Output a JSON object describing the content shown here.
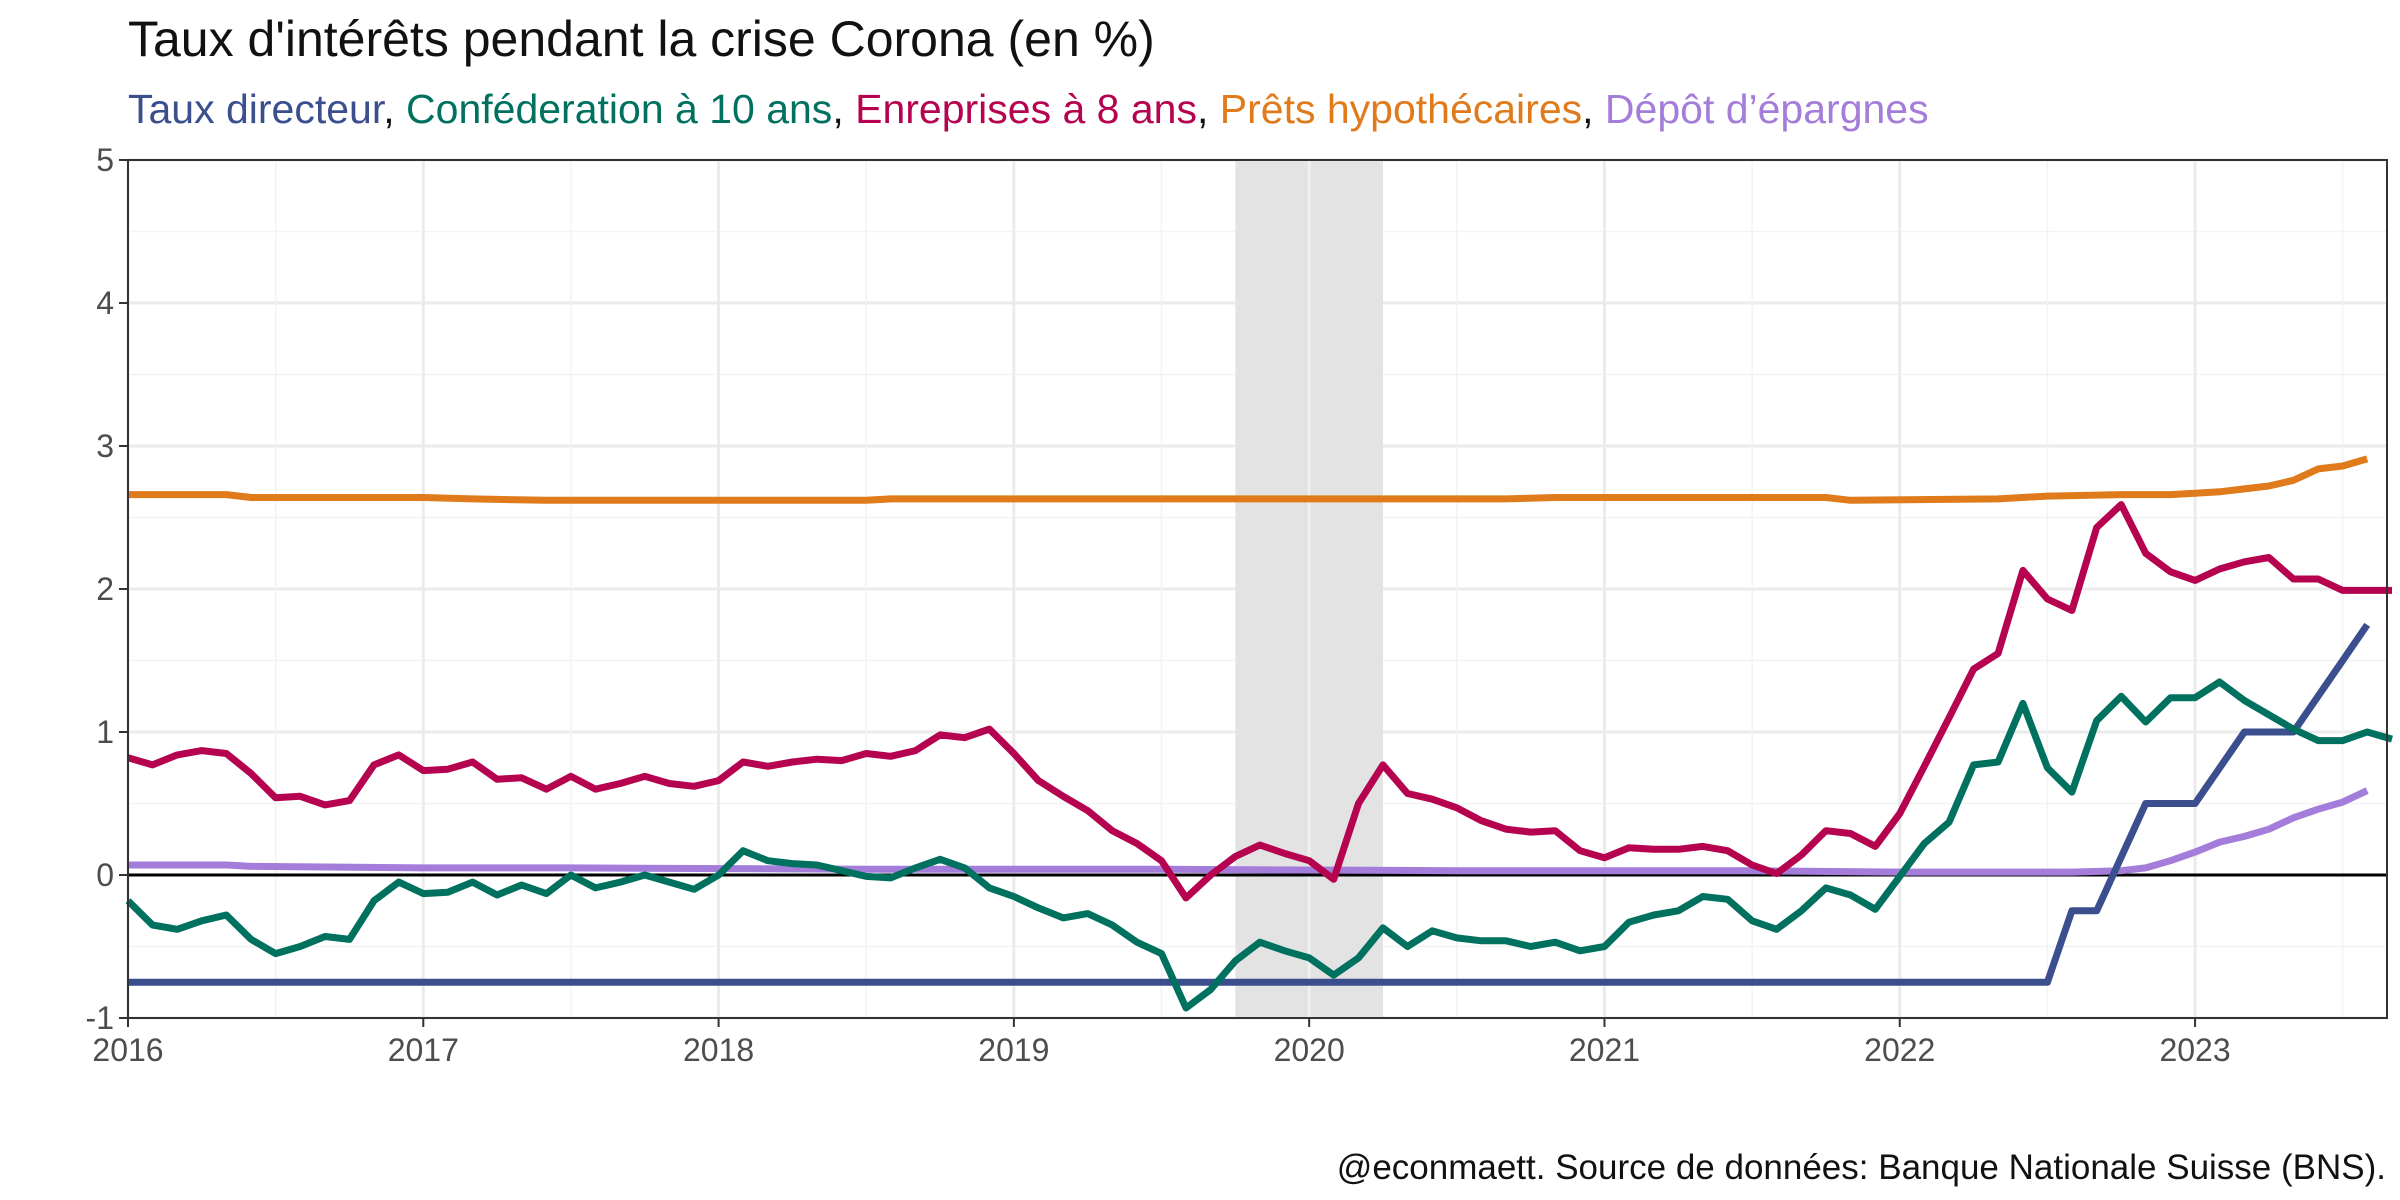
{
  "chart_data": {
    "type": "line",
    "title": "Taux d'intérêts pendant la crise Corona (en %)",
    "caption": "@econmaett. Source de données: Banque Nationale Suisse (BNS).",
    "subtitle_separator": ", ",
    "xlabel": "",
    "ylabel": "",
    "x_ticks": [
      "2016",
      "2017",
      "2018",
      "2019",
      "2020",
      "2021",
      "2022",
      "2023"
    ],
    "y_ticks": [
      "-1",
      "0",
      "1",
      "2",
      "3",
      "4",
      "5"
    ],
    "xlim": [
      2016.0,
      2023.65
    ],
    "ylim": [
      -1,
      5
    ],
    "grid": true,
    "legend_placement": "subtitle",
    "shaded_region": {
      "x": [
        2019.75,
        2020.25
      ],
      "color": "#e3e3e3"
    },
    "zero_line": true,
    "series": [
      {
        "name": "Taux directeur",
        "color": "#3b4f8f",
        "x": [
          2016.0,
          2022.5,
          2022.5,
          2022.583,
          2022.583,
          2022.667,
          2022.667,
          2022.833,
          2022.833,
          2023.0,
          2023.0,
          2023.167,
          2023.167,
          2023.333,
          2023.333,
          2023.5,
          2023.5,
          2023.583
        ],
        "values": [
          -0.75,
          -0.75,
          -0.75,
          -0.25,
          -0.25,
          -0.25,
          -0.25,
          0.5,
          0.5,
          0.5,
          0.5,
          1.0,
          1.0,
          1.0,
          1.0,
          1.5,
          1.5,
          1.75
        ]
      },
      {
        "name": "Conféderation à 10 ans",
        "color": "#00705f",
        "x": [
          2016.0,
          2016.083,
          2016.167,
          2016.25,
          2016.333,
          2016.417,
          2016.5,
          2016.583,
          2016.667,
          2016.75,
          2016.833,
          2016.917,
          2017.0,
          2017.083,
          2017.167,
          2017.25,
          2017.333,
          2017.417,
          2017.5,
          2017.583,
          2017.667,
          2017.75,
          2017.833,
          2017.917,
          2018.0,
          2018.083,
          2018.167,
          2018.25,
          2018.333,
          2018.417,
          2018.5,
          2018.583,
          2018.667,
          2018.75,
          2018.833,
          2018.917,
          2019.0,
          2019.083,
          2019.167,
          2019.25,
          2019.333,
          2019.417,
          2019.5,
          2019.583,
          2019.667,
          2019.75,
          2019.833,
          2019.917,
          2020.0,
          2020.083,
          2020.167,
          2020.25,
          2020.333,
          2020.417,
          2020.5,
          2020.583,
          2020.667,
          2020.75,
          2020.833,
          2020.917,
          2021.0,
          2021.083,
          2021.167,
          2021.25,
          2021.333,
          2021.417,
          2021.5,
          2021.583,
          2021.667,
          2021.75,
          2021.833,
          2021.917,
          2022.0,
          2022.083,
          2022.167,
          2022.25,
          2022.333,
          2022.417,
          2022.5,
          2022.583,
          2022.667,
          2022.75,
          2022.833,
          2022.917,
          2023.0,
          2023.083,
          2023.167,
          2023.25,
          2023.333,
          2023.417,
          2023.5,
          2023.583,
          2023.667
        ],
        "values": [
          -0.18,
          -0.35,
          -0.38,
          -0.32,
          -0.28,
          -0.45,
          -0.55,
          -0.5,
          -0.43,
          -0.45,
          -0.18,
          -0.05,
          -0.13,
          -0.12,
          -0.05,
          -0.14,
          -0.07,
          -0.13,
          0.0,
          -0.09,
          -0.05,
          0.0,
          -0.05,
          -0.1,
          0.0,
          0.17,
          0.1,
          0.08,
          0.07,
          0.03,
          -0.01,
          -0.02,
          0.05,
          0.11,
          0.05,
          -0.09,
          -0.15,
          -0.23,
          -0.3,
          -0.27,
          -0.35,
          -0.47,
          -0.55,
          -0.93,
          -0.8,
          -0.6,
          -0.47,
          -0.53,
          -0.58,
          -0.7,
          -0.58,
          -0.37,
          -0.5,
          -0.39,
          -0.44,
          -0.46,
          -0.46,
          -0.5,
          -0.47,
          -0.53,
          -0.5,
          -0.33,
          -0.28,
          -0.25,
          -0.15,
          -0.17,
          -0.32,
          -0.38,
          -0.25,
          -0.09,
          -0.14,
          -0.24,
          -0.01,
          0.22,
          0.37,
          0.77,
          0.79,
          1.2,
          0.75,
          0.58,
          1.08,
          1.25,
          1.07,
          1.24,
          1.24,
          1.35,
          1.22,
          1.12,
          1.02,
          0.94,
          0.94,
          1.0,
          0.95
        ]
      },
      {
        "name": "Enreprises à 8 ans",
        "color": "#b5034f",
        "x": [
          2016.0,
          2016.083,
          2016.167,
          2016.25,
          2016.333,
          2016.417,
          2016.5,
          2016.583,
          2016.667,
          2016.75,
          2016.833,
          2016.917,
          2017.0,
          2017.083,
          2017.167,
          2017.25,
          2017.333,
          2017.417,
          2017.5,
          2017.583,
          2017.667,
          2017.75,
          2017.833,
          2017.917,
          2018.0,
          2018.083,
          2018.167,
          2018.25,
          2018.333,
          2018.417,
          2018.5,
          2018.583,
          2018.667,
          2018.75,
          2018.833,
          2018.917,
          2019.0,
          2019.083,
          2019.167,
          2019.25,
          2019.333,
          2019.417,
          2019.5,
          2019.583,
          2019.667,
          2019.75,
          2019.833,
          2019.917,
          2020.0,
          2020.083,
          2020.167,
          2020.25,
          2020.333,
          2020.417,
          2020.5,
          2020.583,
          2020.667,
          2020.75,
          2020.833,
          2020.917,
          2021.0,
          2021.083,
          2021.167,
          2021.25,
          2021.333,
          2021.417,
          2021.5,
          2021.583,
          2021.667,
          2021.75,
          2021.833,
          2021.917,
          2022.0,
          2022.083,
          2022.167,
          2022.25,
          2022.333,
          2022.417,
          2022.5,
          2022.583,
          2022.667,
          2022.75,
          2022.833,
          2022.917,
          2023.0,
          2023.083,
          2023.167,
          2023.25,
          2023.333,
          2023.417,
          2023.5,
          2023.583,
          2023.667
        ],
        "values": [
          0.82,
          0.77,
          0.84,
          0.87,
          0.85,
          0.71,
          0.54,
          0.55,
          0.49,
          0.52,
          0.77,
          0.84,
          0.73,
          0.74,
          0.79,
          0.67,
          0.68,
          0.6,
          0.69,
          0.6,
          0.64,
          0.69,
          0.64,
          0.62,
          0.66,
          0.79,
          0.76,
          0.79,
          0.81,
          0.8,
          0.85,
          0.83,
          0.87,
          0.98,
          0.96,
          1.02,
          0.85,
          0.66,
          0.55,
          0.45,
          0.31,
          0.22,
          0.1,
          -0.16,
          0.0,
          0.13,
          0.21,
          0.15,
          0.1,
          -0.03,
          0.5,
          0.77,
          0.57,
          0.53,
          0.47,
          0.38,
          0.32,
          0.3,
          0.31,
          0.17,
          0.12,
          0.19,
          0.18,
          0.18,
          0.2,
          0.17,
          0.07,
          0.01,
          0.14,
          0.31,
          0.29,
          0.2,
          0.43,
          0.76,
          1.1,
          1.44,
          1.55,
          2.13,
          1.93,
          1.85,
          2.43,
          2.59,
          2.25,
          2.12,
          2.06,
          2.14,
          2.19,
          2.22,
          2.07,
          2.07,
          1.99,
          1.99,
          1.99
        ]
      },
      {
        "name": "Prêts hypothécaires",
        "color": "#e07b1b",
        "x": [
          2016.0,
          2016.333,
          2016.417,
          2017.0,
          2017.167,
          2017.417,
          2018.5,
          2018.583,
          2020.667,
          2020.833,
          2021.75,
          2021.833,
          2022.333,
          2022.5,
          2022.75,
          2022.917,
          2023.0,
          2023.083,
          2023.167,
          2023.25,
          2023.333,
          2023.417,
          2023.5,
          2023.583
        ],
        "values": [
          2.66,
          2.66,
          2.64,
          2.64,
          2.63,
          2.62,
          2.62,
          2.63,
          2.63,
          2.64,
          2.64,
          2.62,
          2.63,
          2.65,
          2.66,
          2.66,
          2.67,
          2.68,
          2.7,
          2.72,
          2.76,
          2.84,
          2.86,
          2.91
        ]
      },
      {
        "name": "Dépôt d’épargnes",
        "color": "#a47ddb",
        "x": [
          2016.0,
          2016.333,
          2016.417,
          2017.0,
          2017.5,
          2018.5,
          2019.5,
          2020.5,
          2021.5,
          2022.0,
          2022.583,
          2022.75,
          2022.833,
          2022.917,
          2023.0,
          2023.083,
          2023.167,
          2023.25,
          2023.333,
          2023.417,
          2023.5,
          2023.583
        ],
        "values": [
          0.07,
          0.07,
          0.06,
          0.05,
          0.05,
          0.04,
          0.04,
          0.03,
          0.03,
          0.02,
          0.02,
          0.03,
          0.05,
          0.1,
          0.16,
          0.23,
          0.27,
          0.32,
          0.4,
          0.46,
          0.51,
          0.59
        ]
      }
    ]
  }
}
